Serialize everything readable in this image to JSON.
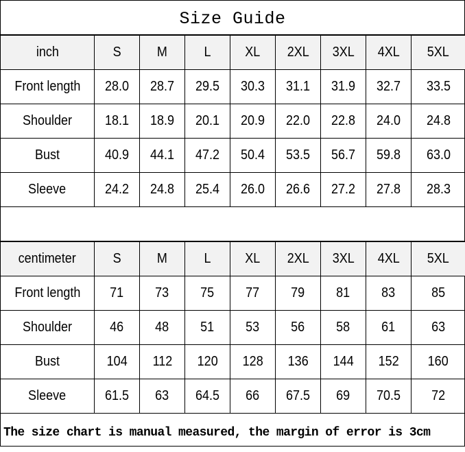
{
  "title": "Size Guide",
  "sizes": [
    "S",
    "M",
    "L",
    "XL",
    "2XL",
    "3XL",
    "4XL",
    "5XL"
  ],
  "inch": {
    "unit_label": "inch",
    "rows": [
      {
        "label": "Front length",
        "values": [
          "28.0",
          "28.7",
          "29.5",
          "30.3",
          "31.1",
          "31.9",
          "32.7",
          "33.5"
        ]
      },
      {
        "label": "Shoulder",
        "values": [
          "18.1",
          "18.9",
          "20.1",
          "20.9",
          "22.0",
          "22.8",
          "24.0",
          "24.8"
        ]
      },
      {
        "label": "Bust",
        "values": [
          "40.9",
          "44.1",
          "47.2",
          "50.4",
          "53.5",
          "56.7",
          "59.8",
          "63.0"
        ]
      },
      {
        "label": "Sleeve",
        "values": [
          "24.2",
          "24.8",
          "25.4",
          "26.0",
          "26.6",
          "27.2",
          "27.8",
          "28.3"
        ]
      }
    ]
  },
  "centimeter": {
    "unit_label": "centimeter",
    "rows": [
      {
        "label": "Front length",
        "values": [
          "71",
          "73",
          "75",
          "77",
          "79",
          "81",
          "83",
          "85"
        ]
      },
      {
        "label": "Shoulder",
        "values": [
          "46",
          "48",
          "51",
          "53",
          "56",
          "58",
          "61",
          "63"
        ]
      },
      {
        "label": "Bust",
        "values": [
          "104",
          "112",
          "120",
          "128",
          "136",
          "144",
          "152",
          "160"
        ]
      },
      {
        "label": "Sleeve",
        "values": [
          "61.5",
          "63",
          "64.5",
          "66",
          "67.5",
          "69",
          "70.5",
          "72"
        ]
      }
    ]
  },
  "footer_note": "The size chart is manual measured, the margin of error is 3cm"
}
